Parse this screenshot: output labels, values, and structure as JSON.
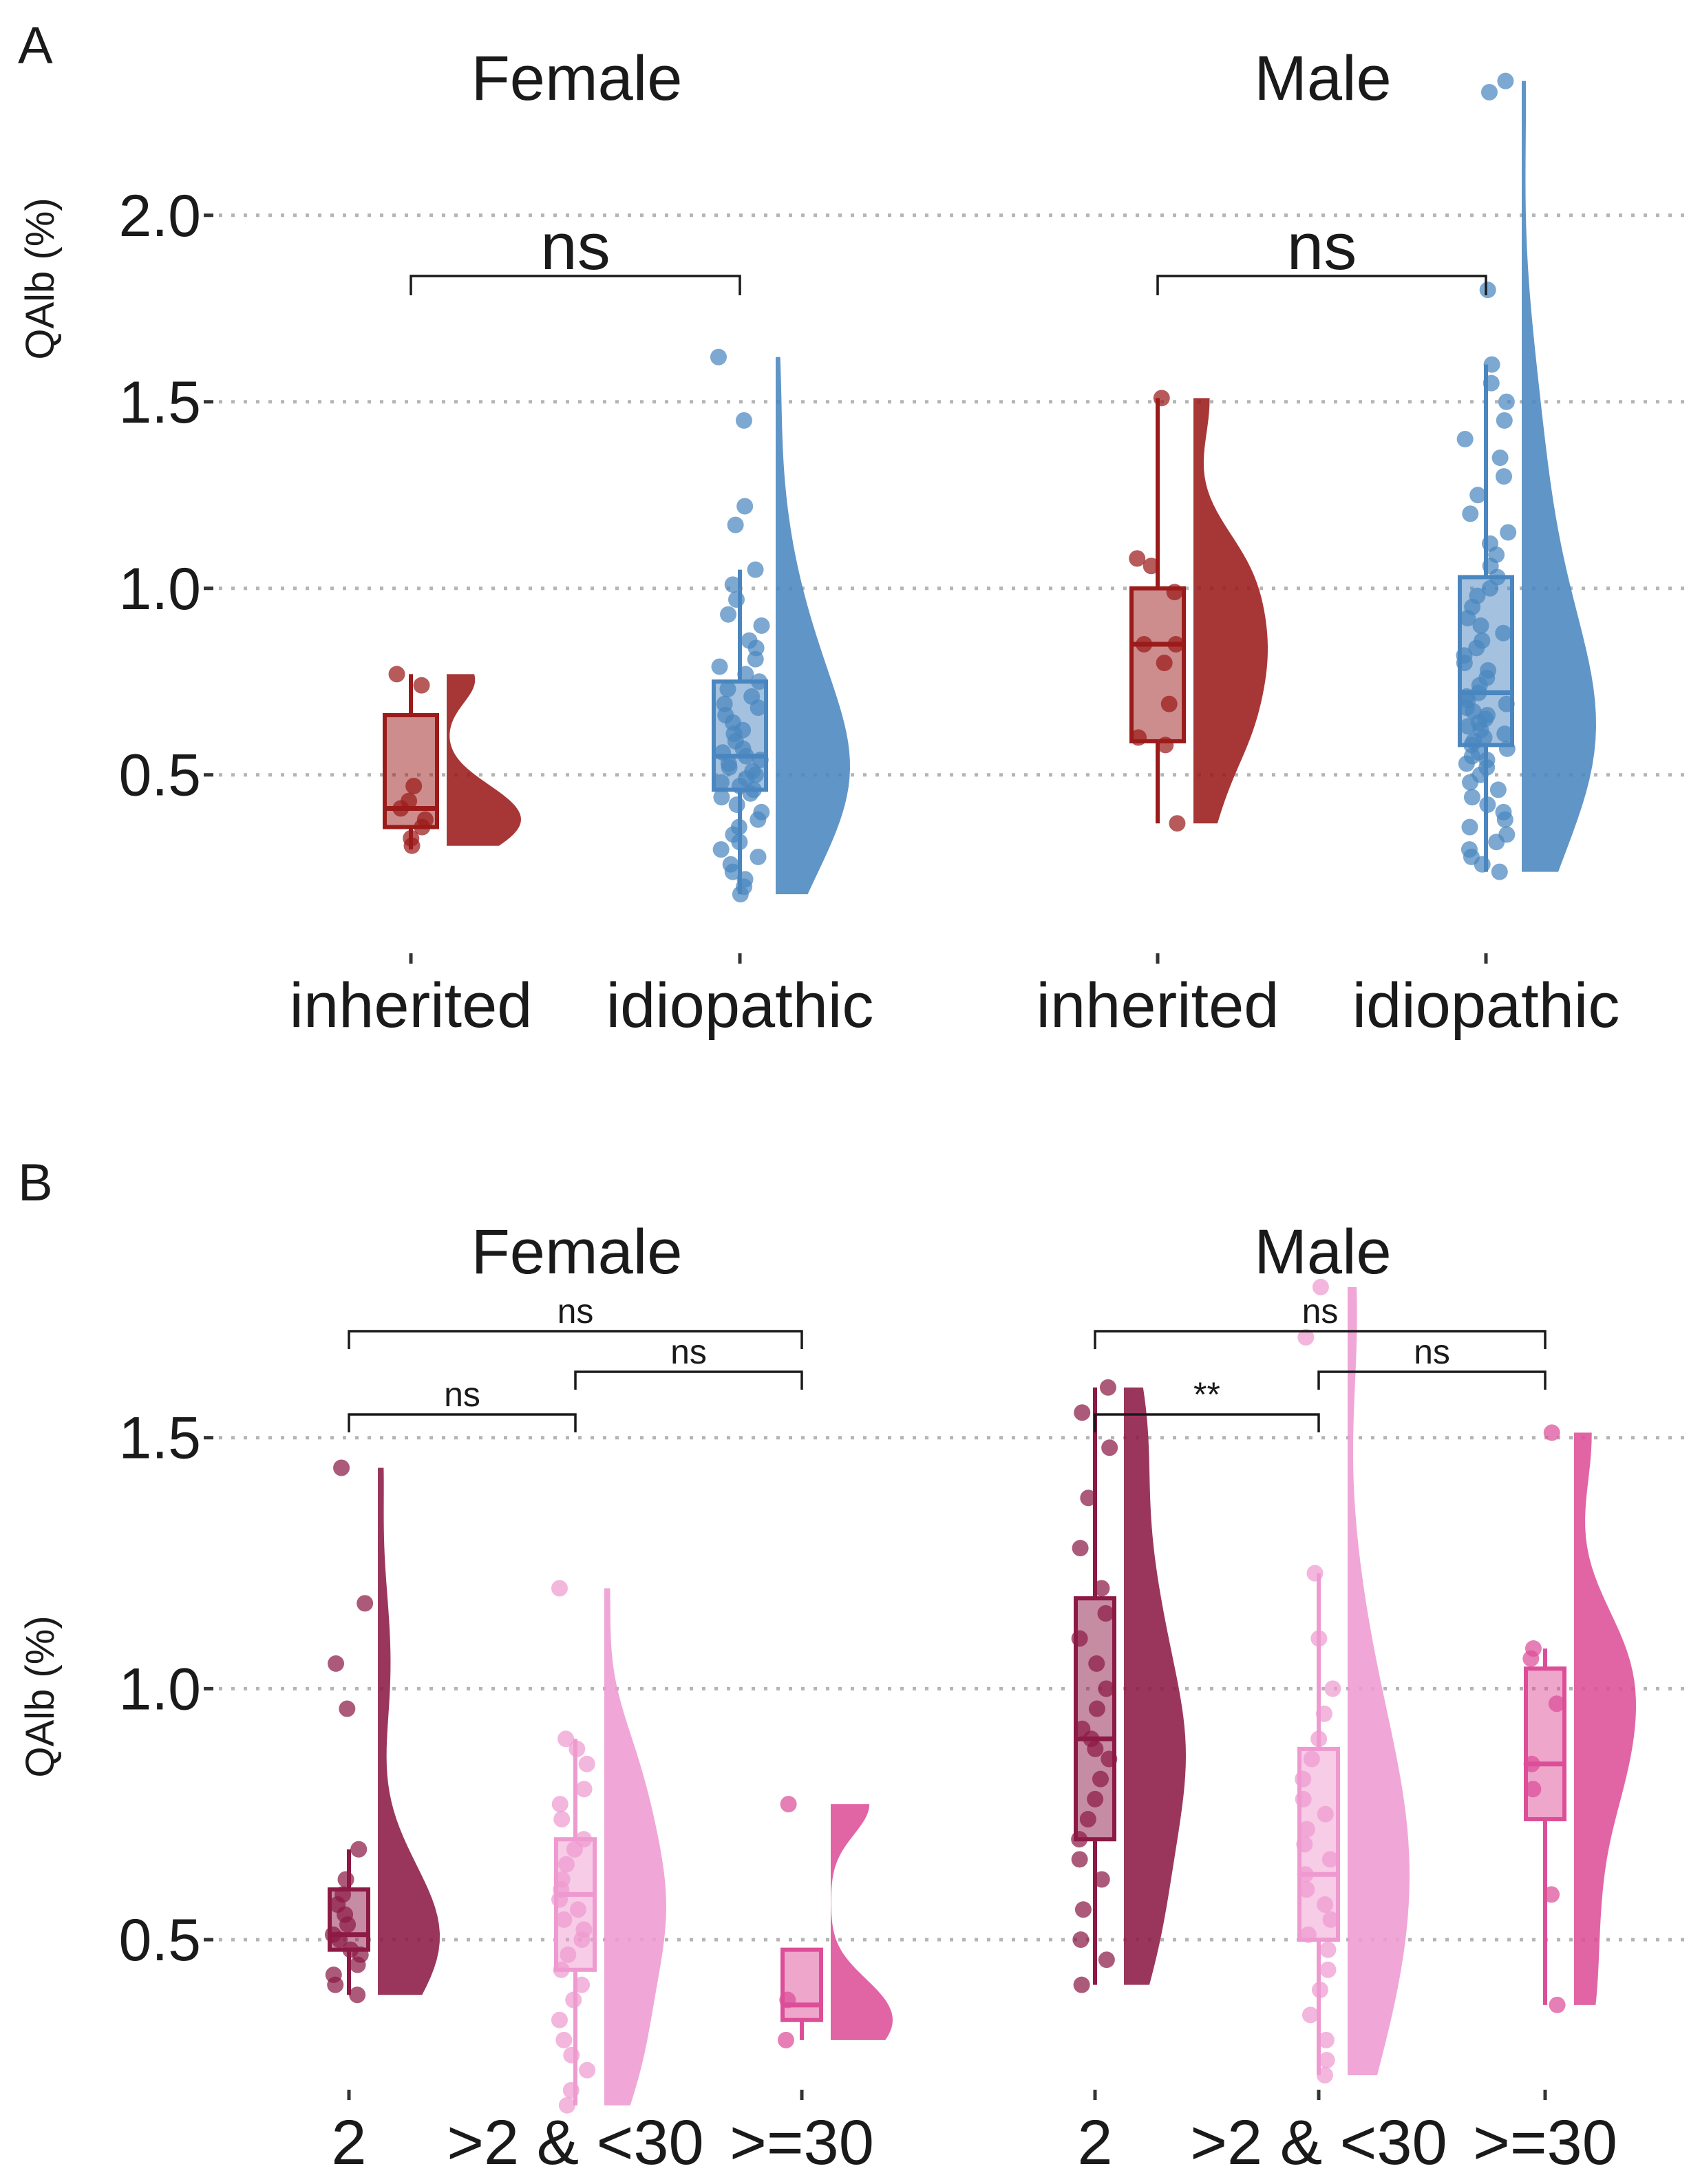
{
  "chart_data": [
    {
      "panel": "A",
      "type": "raincloud",
      "ylabel": "QAlb (%)",
      "xlabel": "",
      "ylim": [
        0.16,
        2.4
      ],
      "yticks": [
        0.5,
        1.0,
        1.5,
        2.0
      ],
      "ytick_labels": [
        "0.5",
        "1.0",
        "1.5",
        "2.0"
      ],
      "grid": "horizontal dotted",
      "categories": [
        "inherited",
        "idiopathic"
      ],
      "colors": {
        "inherited": "#9b1b1b",
        "idiopathic": "#4a86bf"
      },
      "facets": [
        {
          "title": "Female",
          "groups": [
            {
              "name": "inherited",
              "q1": 0.36,
              "median": 0.41,
              "q3": 0.66,
              "whisker_low": 0.3,
              "whisker_high": 0.77,
              "points": [
                0.77,
                0.74,
                0.47,
                0.43,
                0.41,
                0.38,
                0.36,
                0.33,
                0.31
              ]
            },
            {
              "name": "idiopathic",
              "q1": 0.46,
              "median": 0.55,
              "q3": 0.75,
              "whisker_low": 0.18,
              "whisker_high": 1.05,
              "points": [
                1.62,
                1.45,
                1.22,
                1.17,
                1.05,
                1.01,
                0.97,
                0.93,
                0.9,
                0.86,
                0.84,
                0.81,
                0.79,
                0.77,
                0.75,
                0.73,
                0.71,
                0.69,
                0.68,
                0.66,
                0.64,
                0.62,
                0.61,
                0.59,
                0.57,
                0.56,
                0.55,
                0.54,
                0.53,
                0.52,
                0.51,
                0.5,
                0.49,
                0.48,
                0.47,
                0.46,
                0.45,
                0.44,
                0.42,
                0.4,
                0.38,
                0.36,
                0.34,
                0.32,
                0.3,
                0.28,
                0.26,
                0.24,
                0.22,
                0.2,
                0.18
              ]
            }
          ],
          "comparisons": [
            {
              "groups": [
                "inherited",
                "idiopathic"
              ],
              "label": "ns"
            }
          ]
        },
        {
          "title": "Male",
          "groups": [
            {
              "name": "inherited",
              "q1": 0.59,
              "median": 0.85,
              "q3": 1.0,
              "whisker_low": 0.37,
              "whisker_high": 1.51,
              "points": [
                1.51,
                1.08,
                1.06,
                0.99,
                0.85,
                0.85,
                0.8,
                0.69,
                0.6,
                0.58,
                0.37
              ]
            },
            {
              "name": "idiopathic",
              "q1": 0.58,
              "median": 0.72,
              "q3": 1.03,
              "whisker_low": 0.24,
              "whisker_high": 1.6,
              "points": [
                2.36,
                2.33,
                1.8,
                1.6,
                1.55,
                1.5,
                1.45,
                1.4,
                1.35,
                1.3,
                1.25,
                1.2,
                1.15,
                1.12,
                1.09,
                1.06,
                1.03,
                1.0,
                0.98,
                0.95,
                0.92,
                0.9,
                0.88,
                0.86,
                0.84,
                0.82,
                0.8,
                0.78,
                0.76,
                0.74,
                0.72,
                0.71,
                0.7,
                0.69,
                0.68,
                0.67,
                0.66,
                0.65,
                0.64,
                0.63,
                0.62,
                0.61,
                0.6,
                0.59,
                0.58,
                0.57,
                0.56,
                0.55,
                0.54,
                0.53,
                0.52,
                0.5,
                0.48,
                0.46,
                0.44,
                0.42,
                0.4,
                0.38,
                0.36,
                0.34,
                0.32,
                0.3,
                0.28,
                0.26,
                0.24
              ]
            }
          ],
          "comparisons": [
            {
              "groups": [
                "inherited",
                "idiopathic"
              ],
              "label": "ns"
            }
          ]
        }
      ]
    },
    {
      "panel": "B",
      "type": "raincloud",
      "ylabel": "QAlb (%)",
      "xlabel": "",
      "ylim": [
        0.16,
        1.9
      ],
      "yticks": [
        0.5,
        1.0,
        1.5
      ],
      "ytick_labels": [
        "0.5",
        "1.0",
        "1.5"
      ],
      "grid": "horizontal dotted",
      "categories": [
        "2",
        ">2 & <30",
        ">=30"
      ],
      "colors": {
        "2": "#8c1a45",
        ">2 & <30": "#ee9ad0",
        ">=30": "#dd4e98"
      },
      "facets": [
        {
          "title": "Female",
          "groups": [
            {
              "name": "2",
              "q1": 0.48,
              "median": 0.51,
              "q3": 0.6,
              "whisker_low": 0.39,
              "whisker_high": 0.68,
              "points": [
                1.44,
                1.17,
                1.05,
                0.96,
                0.68,
                0.62,
                0.59,
                0.57,
                0.55,
                0.53,
                0.51,
                0.5,
                0.48,
                0.47,
                0.45,
                0.43,
                0.41,
                0.39
              ]
            },
            {
              "name": ">2 & <30",
              "q1": 0.44,
              "median": 0.59,
              "q3": 0.7,
              "whisker_low": 0.17,
              "whisker_high": 0.9,
              "points": [
                1.2,
                0.9,
                0.88,
                0.85,
                0.8,
                0.77,
                0.74,
                0.7,
                0.68,
                0.65,
                0.62,
                0.6,
                0.58,
                0.56,
                0.54,
                0.52,
                0.5,
                0.47,
                0.44,
                0.41,
                0.38,
                0.34,
                0.3,
                0.27,
                0.24,
                0.2,
                0.17
              ]
            },
            {
              "name": ">=30",
              "q1": 0.34,
              "median": 0.37,
              "q3": 0.48,
              "whisker_low": 0.3,
              "whisker_high": 0.48,
              "points": [
                0.77,
                0.38,
                0.3
              ]
            }
          ],
          "comparisons": [
            {
              "groups": [
                "2",
                ">2 & <30"
              ],
              "label": "ns"
            },
            {
              "groups": [
                ">2 & <30",
                ">=30"
              ],
              "label": "ns"
            },
            {
              "groups": [
                "2",
                ">=30"
              ],
              "label": "ns"
            }
          ]
        },
        {
          "title": "Male",
          "groups": [
            {
              "name": "2",
              "q1": 0.7,
              "median": 0.9,
              "q3": 1.18,
              "whisker_low": 0.41,
              "whisker_high": 1.6,
              "points": [
                1.6,
                1.55,
                1.48,
                1.38,
                1.28,
                1.2,
                1.15,
                1.1,
                1.05,
                1.0,
                0.96,
                0.92,
                0.9,
                0.88,
                0.86,
                0.82,
                0.78,
                0.74,
                0.7,
                0.66,
                0.62,
                0.56,
                0.5,
                0.46,
                0.41
              ]
            },
            {
              "name": ">2 & <30",
              "q1": 0.5,
              "median": 0.63,
              "q3": 0.88,
              "whisker_low": 0.23,
              "whisker_high": 1.23,
              "points": [
                1.8,
                1.7,
                1.23,
                1.1,
                1.0,
                0.95,
                0.9,
                0.86,
                0.82,
                0.78,
                0.75,
                0.72,
                0.69,
                0.66,
                0.63,
                0.6,
                0.57,
                0.54,
                0.51,
                0.48,
                0.44,
                0.4,
                0.35,
                0.3,
                0.26,
                0.23
              ]
            },
            {
              "name": ">=30",
              "q1": 0.74,
              "median": 0.85,
              "q3": 1.04,
              "whisker_low": 0.37,
              "whisker_high": 1.08,
              "points": [
                1.51,
                1.08,
                1.06,
                0.97,
                0.85,
                0.8,
                0.59,
                0.37
              ]
            }
          ],
          "comparisons": [
            {
              "groups": [
                "2",
                ">2 & <30"
              ],
              "label": "**"
            },
            {
              "groups": [
                ">2 & <30",
                ">=30"
              ],
              "label": "ns"
            },
            {
              "groups": [
                "2",
                ">=30"
              ],
              "label": "ns"
            }
          ]
        }
      ]
    }
  ]
}
